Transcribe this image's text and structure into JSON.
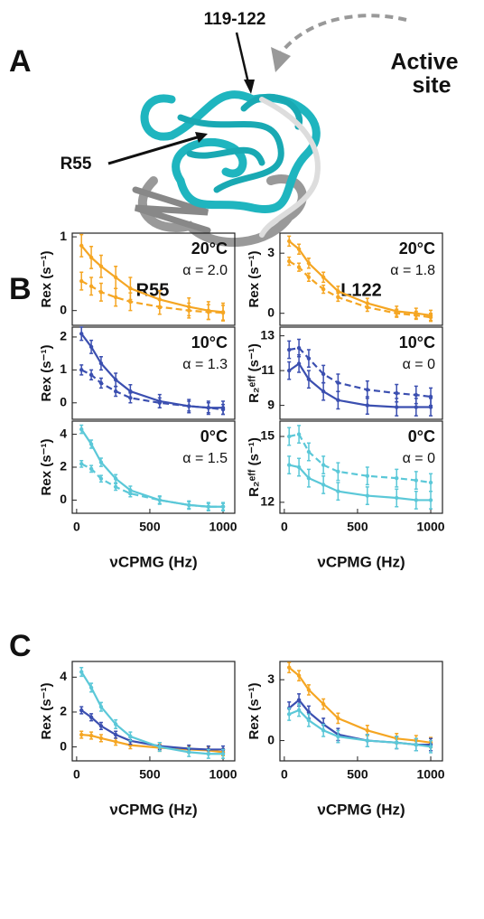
{
  "figure": {
    "panel_labels": [
      "A",
      "B",
      "C"
    ],
    "columns": [
      "R55",
      "L122"
    ],
    "structure": {
      "region": "119-122",
      "residue": "R55",
      "site": [
        "Active",
        "site"
      ]
    }
  },
  "chart_data": [
    {
      "type": "line",
      "annotation": "20°C",
      "alpha": "α = 2.0",
      "y_label": "Rex (s⁻¹)",
      "xlim": [
        -30,
        1080
      ],
      "ylim": [
        -0.2,
        1.05
      ],
      "yticks": [
        0,
        1
      ],
      "x": [
        33,
        100,
        167,
        267,
        367,
        567,
        767,
        900,
        1000
      ],
      "series": [
        {
          "color": "#f5a623",
          "dash": false,
          "values": [
            0.88,
            0.72,
            0.6,
            0.45,
            0.3,
            0.15,
            0.05,
            0.0,
            -0.02
          ],
          "errors": [
            0.15,
            0.15,
            0.15,
            0.15,
            0.15,
            0.12,
            0.12,
            0.12,
            0.12
          ]
        },
        {
          "color": "#f5a623",
          "dash": true,
          "values": [
            0.4,
            0.33,
            0.25,
            0.18,
            0.12,
            0.05,
            0.0,
            -0.02,
            -0.03
          ],
          "errors": [
            0.12,
            0.12,
            0.12,
            0.12,
            0.12,
            0.1,
            0.1,
            0.1,
            0.1
          ]
        }
      ]
    },
    {
      "type": "line",
      "annotation": "10°C",
      "alpha": "α = 1.3",
      "y_label": "Rex (s⁻¹)",
      "xlim": [
        -30,
        1080
      ],
      "ylim": [
        -0.5,
        2.3
      ],
      "yticks": [
        0,
        1,
        2
      ],
      "x": [
        33,
        100,
        167,
        267,
        367,
        567,
        767,
        900,
        1000
      ],
      "series": [
        {
          "color": "#3b4fb0",
          "dash": false,
          "values": [
            2.1,
            1.7,
            1.2,
            0.7,
            0.35,
            0.05,
            -0.1,
            -0.15,
            -0.15
          ],
          "errors": [
            0.2,
            0.2,
            0.2,
            0.2,
            0.2,
            0.2,
            0.2,
            0.2,
            0.2
          ]
        },
        {
          "color": "#3b4fb0",
          "dash": true,
          "values": [
            1.0,
            0.85,
            0.6,
            0.35,
            0.15,
            0.0,
            -0.1,
            -0.15,
            -0.2
          ],
          "errors": [
            0.15,
            0.15,
            0.15,
            0.15,
            0.15,
            0.15,
            0.15,
            0.15,
            0.15
          ]
        }
      ]
    },
    {
      "type": "line",
      "annotation": "0°C",
      "alpha": "α = 1.5",
      "y_label": "Rex (s⁻¹)",
      "xlim": [
        -30,
        1080
      ],
      "ylim": [
        -0.8,
        4.8
      ],
      "yticks": [
        0,
        2,
        4
      ],
      "x": [
        33,
        100,
        167,
        267,
        367,
        567,
        767,
        900,
        1000
      ],
      "xticks": [
        0,
        500,
        1000
      ],
      "x_label": "νCPMG (Hz)",
      "series": [
        {
          "color": "#5bc8d8",
          "dash": false,
          "values": [
            4.3,
            3.4,
            2.3,
            1.3,
            0.6,
            0.0,
            -0.3,
            -0.4,
            -0.4
          ],
          "errors": [
            0.25,
            0.25,
            0.25,
            0.25,
            0.25,
            0.25,
            0.25,
            0.25,
            0.25
          ]
        },
        {
          "color": "#5bc8d8",
          "dash": true,
          "values": [
            2.2,
            1.9,
            1.3,
            0.8,
            0.4,
            0.0,
            -0.3,
            -0.4,
            -0.4
          ],
          "errors": [
            0.2,
            0.2,
            0.2,
            0.2,
            0.2,
            0.2,
            0.2,
            0.2,
            0.2
          ]
        }
      ]
    },
    {
      "type": "line",
      "annotation": "20°C",
      "alpha": "α = 1.8",
      "y_label": "Rex (s⁻¹)",
      "xlim": [
        -30,
        1080
      ],
      "ylim": [
        -0.6,
        4.0
      ],
      "yticks": [
        0,
        3
      ],
      "x": [
        33,
        100,
        167,
        267,
        367,
        567,
        767,
        900,
        1000
      ],
      "series": [
        {
          "color": "#f5a623",
          "dash": false,
          "values": [
            3.6,
            3.2,
            2.5,
            1.8,
            1.1,
            0.5,
            0.1,
            0.0,
            -0.1
          ],
          "errors": [
            0.25,
            0.25,
            0.25,
            0.25,
            0.25,
            0.25,
            0.25,
            0.25,
            0.25
          ]
        },
        {
          "color": "#f5a623",
          "dash": true,
          "values": [
            2.6,
            2.3,
            1.8,
            1.2,
            0.8,
            0.3,
            0.0,
            -0.1,
            -0.2
          ],
          "errors": [
            0.2,
            0.2,
            0.2,
            0.2,
            0.2,
            0.2,
            0.2,
            0.2,
            0.2
          ]
        }
      ]
    },
    {
      "type": "line",
      "annotation": "10°C",
      "alpha": "α = 0",
      "y_label": "R₂ᵉᶠᶠ (s⁻¹)",
      "xlim": [
        -30,
        1080
      ],
      "ylim": [
        8.2,
        13.5
      ],
      "yticks": [
        9,
        11,
        13
      ],
      "x": [
        33,
        100,
        167,
        267,
        367,
        567,
        767,
        900,
        1000
      ],
      "series": [
        {
          "color": "#3b4fb0",
          "dash": false,
          "values": [
            11.0,
            11.4,
            10.5,
            9.8,
            9.3,
            9.0,
            8.9,
            8.9,
            8.9
          ],
          "errors": [
            0.5,
            0.5,
            0.5,
            0.5,
            0.5,
            0.5,
            0.5,
            0.5,
            0.5
          ]
        },
        {
          "color": "#3b4fb0",
          "dash": true,
          "values": [
            12.2,
            12.3,
            11.7,
            10.8,
            10.3,
            9.9,
            9.7,
            9.6,
            9.5
          ],
          "errors": [
            0.5,
            0.5,
            0.5,
            0.5,
            0.5,
            0.5,
            0.5,
            0.5,
            0.5
          ]
        }
      ]
    },
    {
      "type": "line",
      "annotation": "0°C",
      "alpha": "α = 0",
      "y_label": "R₂ᵉᶠᶠ (s⁻¹)",
      "xlim": [
        -30,
        1080
      ],
      "ylim": [
        11.5,
        15.7
      ],
      "yticks": [
        12,
        15
      ],
      "x": [
        33,
        100,
        167,
        267,
        367,
        567,
        767,
        900,
        1000
      ],
      "xticks": [
        0,
        500,
        1000
      ],
      "x_label": "νCPMG (Hz)",
      "series": [
        {
          "color": "#5bc8d8",
          "dash": false,
          "values": [
            13.7,
            13.6,
            13.1,
            12.8,
            12.5,
            12.3,
            12.2,
            12.1,
            12.1
          ],
          "errors": [
            0.4,
            0.4,
            0.4,
            0.4,
            0.4,
            0.4,
            0.4,
            0.4,
            0.4
          ]
        },
        {
          "color": "#5bc8d8",
          "dash": true,
          "values": [
            15.0,
            15.1,
            14.3,
            13.7,
            13.4,
            13.2,
            13.1,
            13.0,
            12.9
          ],
          "errors": [
            0.4,
            0.4,
            0.4,
            0.4,
            0.4,
            0.4,
            0.4,
            0.4,
            0.4
          ]
        }
      ]
    },
    {
      "type": "line",
      "y_label": "Rex (s⁻¹)",
      "xlim": [
        -30,
        1080
      ],
      "ylim": [
        -0.8,
        4.9
      ],
      "yticks": [
        0,
        2,
        4
      ],
      "x": [
        33,
        100,
        167,
        267,
        367,
        567,
        767,
        900,
        1000
      ],
      "xticks": [
        0,
        500,
        1000
      ],
      "x_label": "νCPMG (Hz)",
      "series": [
        {
          "color": "#f5a623",
          "dash": false,
          "values": [
            0.7,
            0.65,
            0.5,
            0.3,
            0.1,
            -0.05,
            -0.15,
            -0.2,
            -0.3
          ],
          "errors": [
            0.2,
            0.2,
            0.2,
            0.2,
            0.2,
            0.2,
            0.2,
            0.2,
            0.2
          ]
        },
        {
          "color": "#3b4fb0",
          "dash": false,
          "values": [
            2.1,
            1.7,
            1.2,
            0.7,
            0.35,
            0.05,
            -0.1,
            -0.15,
            -0.15
          ],
          "errors": [
            0.2,
            0.2,
            0.2,
            0.2,
            0.2,
            0.2,
            0.2,
            0.2,
            0.2
          ]
        },
        {
          "color": "#5bc8d8",
          "dash": false,
          "values": [
            4.3,
            3.4,
            2.3,
            1.3,
            0.6,
            0.0,
            -0.3,
            -0.4,
            -0.4
          ],
          "errors": [
            0.25,
            0.25,
            0.25,
            0.25,
            0.25,
            0.25,
            0.25,
            0.25,
            0.25
          ]
        }
      ]
    },
    {
      "type": "line",
      "y_label": "Rex (s⁻¹)",
      "xlim": [
        -30,
        1080
      ],
      "ylim": [
        -1.0,
        3.9
      ],
      "yticks": [
        0,
        3
      ],
      "x": [
        33,
        100,
        167,
        267,
        367,
        567,
        767,
        900,
        1000
      ],
      "xticks": [
        0,
        500,
        1000
      ],
      "x_label": "νCPMG (Hz)",
      "series": [
        {
          "color": "#f5a623",
          "dash": false,
          "values": [
            3.6,
            3.2,
            2.5,
            1.8,
            1.1,
            0.5,
            0.1,
            0.0,
            -0.1
          ],
          "errors": [
            0.25,
            0.25,
            0.25,
            0.25,
            0.25,
            0.25,
            0.25,
            0.25,
            0.25
          ]
        },
        {
          "color": "#3b4fb0",
          "dash": false,
          "values": [
            1.6,
            2.0,
            1.4,
            0.8,
            0.3,
            0.0,
            -0.1,
            -0.2,
            -0.2
          ],
          "errors": [
            0.3,
            0.3,
            0.3,
            0.3,
            0.3,
            0.3,
            0.3,
            0.3,
            0.3
          ]
        },
        {
          "color": "#5bc8d8",
          "dash": false,
          "values": [
            1.3,
            1.5,
            1.0,
            0.5,
            0.2,
            0.0,
            -0.1,
            -0.2,
            -0.3
          ],
          "errors": [
            0.3,
            0.3,
            0.3,
            0.3,
            0.3,
            0.3,
            0.3,
            0.3,
            0.3
          ]
        }
      ]
    }
  ]
}
